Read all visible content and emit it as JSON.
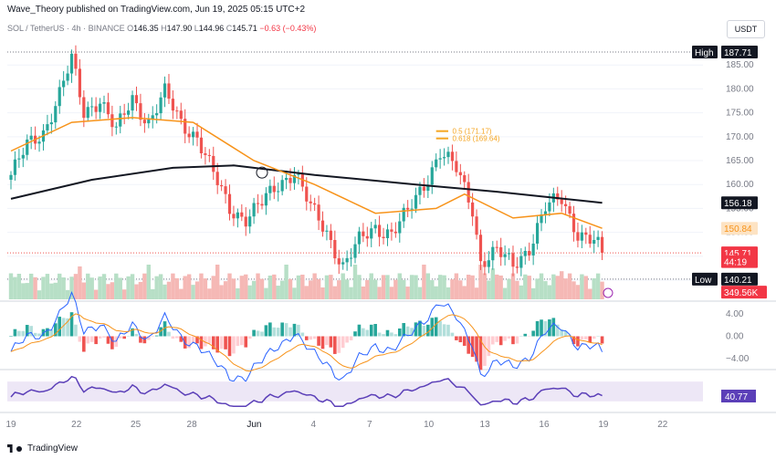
{
  "header": {
    "publisher_line": "Wave_Theory published on TradingView.com, Jun 19, 2025 05:15 UTC+2",
    "symbol": "SOL / TetherUS",
    "interval": "4h",
    "exchange": "BINANCE",
    "open": "146.35",
    "high": "147.90",
    "low": "144.96",
    "close": "145.71",
    "change": "−0.63 (−0.43%)"
  },
  "currency_button": "USDT",
  "footer": {
    "brand": "TradingView"
  },
  "colors": {
    "up": "#26a69a",
    "down": "#ef5350",
    "ema_fast": "#f7931a",
    "ema_slow": "#131722",
    "macd": "#2962ff",
    "signal": "#f7931a",
    "rsi": "#5b3fb8",
    "fib": "#f5a623"
  },
  "chart_data": {
    "type": "candlestick",
    "x_ticks": [
      "19",
      "22",
      "25",
      "28",
      "Jun",
      "4",
      "7",
      "10",
      "13",
      "16",
      "19",
      "22"
    ],
    "price_axis": {
      "ticks": [
        140,
        145,
        150,
        155,
        160,
        165,
        170,
        175,
        180,
        185
      ],
      "ylim": [
        136,
        190
      ]
    },
    "anchors": [
      {
        "i": 0,
        "p": 162
      },
      {
        "i": 4,
        "p": 168
      },
      {
        "i": 8,
        "p": 171
      },
      {
        "i": 12,
        "p": 179
      },
      {
        "i": 15,
        "p": 186
      },
      {
        "i": 18,
        "p": 175
      },
      {
        "i": 22,
        "p": 178
      },
      {
        "i": 26,
        "p": 171
      },
      {
        "i": 30,
        "p": 178
      },
      {
        "i": 34,
        "p": 173
      },
      {
        "i": 38,
        "p": 179
      },
      {
        "i": 42,
        "p": 173
      },
      {
        "i": 46,
        "p": 170
      },
      {
        "i": 50,
        "p": 162
      },
      {
        "i": 54,
        "p": 155
      },
      {
        "i": 58,
        "p": 153
      },
      {
        "i": 62,
        "p": 156
      },
      {
        "i": 66,
        "p": 160
      },
      {
        "i": 70,
        "p": 163
      },
      {
        "i": 74,
        "p": 155
      },
      {
        "i": 78,
        "p": 150
      },
      {
        "i": 82,
        "p": 143
      },
      {
        "i": 86,
        "p": 148
      },
      {
        "i": 90,
        "p": 151
      },
      {
        "i": 94,
        "p": 150
      },
      {
        "i": 98,
        "p": 154
      },
      {
        "i": 102,
        "p": 160
      },
      {
        "i": 106,
        "p": 167
      },
      {
        "i": 110,
        "p": 163
      },
      {
        "i": 114,
        "p": 155
      },
      {
        "i": 116,
        "p": 144
      },
      {
        "i": 120,
        "p": 146
      },
      {
        "i": 124,
        "p": 143
      },
      {
        "i": 128,
        "p": 147
      },
      {
        "i": 132,
        "p": 155
      },
      {
        "i": 136,
        "p": 157
      },
      {
        "i": 140,
        "p": 150
      },
      {
        "i": 144,
        "p": 148
      },
      {
        "i": 146,
        "p": 145.71
      }
    ],
    "ema_fast": [
      {
        "i": 0,
        "p": 167
      },
      {
        "i": 15,
        "p": 173
      },
      {
        "i": 30,
        "p": 174
      },
      {
        "i": 45,
        "p": 173
      },
      {
        "i": 60,
        "p": 165
      },
      {
        "i": 75,
        "p": 160
      },
      {
        "i": 90,
        "p": 154
      },
      {
        "i": 105,
        "p": 155
      },
      {
        "i": 112,
        "p": 158
      },
      {
        "i": 124,
        "p": 153
      },
      {
        "i": 136,
        "p": 154
      },
      {
        "i": 146,
        "p": 150.84
      }
    ],
    "ema_slow": [
      {
        "i": 0,
        "p": 157
      },
      {
        "i": 20,
        "p": 161
      },
      {
        "i": 40,
        "p": 163.5
      },
      {
        "i": 55,
        "p": 164
      },
      {
        "i": 75,
        "p": 162
      },
      {
        "i": 100,
        "p": 160
      },
      {
        "i": 120,
        "p": 158.5
      },
      {
        "i": 146,
        "p": 156.18
      }
    ],
    "fib_levels": [
      {
        "label": "0.5 (171.17)",
        "price": 171.17
      },
      {
        "label": "0.618 (169.64)",
        "price": 169.64
      }
    ],
    "price_labels": [
      {
        "label": "High",
        "value": "187.71",
        "price": 187.71,
        "style": "black"
      },
      {
        "label": "",
        "value": "156.18",
        "price": 156.18,
        "style": "black"
      },
      {
        "label": "",
        "value": "150.84",
        "price": 150.84,
        "style": "orange"
      },
      {
        "label": "",
        "value": "145.71",
        "price": 145.71,
        "style": "red"
      },
      {
        "label": "",
        "value": "44:19",
        "price": 143.9,
        "style": "red"
      },
      {
        "label": "Low",
        "value": "140.21",
        "price": 140.21,
        "style": "black"
      },
      {
        "label": "",
        "value": "349.56K",
        "price": 137.5,
        "style": "red"
      }
    ],
    "macd": {
      "ticks": [
        4.0,
        0.0,
        -4.0
      ],
      "tick_labels": [
        "4.00",
        "0.00",
        "−4.00"
      ],
      "ylim": [
        -5.5,
        5.5
      ]
    },
    "rsi": {
      "value": "40.77",
      "ylim": [
        15,
        85
      ]
    }
  }
}
